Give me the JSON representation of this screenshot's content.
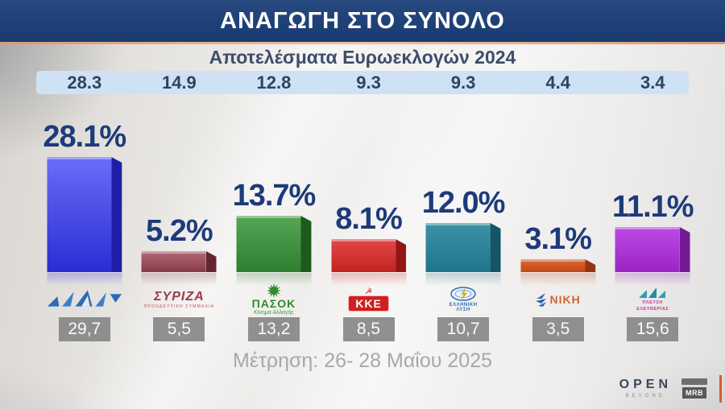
{
  "header": {
    "title": "ΑΝΑΓΩΓΗ ΣΤΟ ΣΥΝΟΛΟ"
  },
  "subtitle": "Αποτελέσματα Ευρωεκλογών 2024",
  "survey_note": "Μέτρηση: 26- 28 Μαΐου 2025",
  "branding": {
    "channel": "OPEN",
    "channel_tagline": "BEYOND",
    "pollster": "MRB"
  },
  "colors": {
    "header_bg": "#1d3d75",
    "accent_rule": "#e29c76",
    "strip_bg": "#cfe2f4",
    "pct_text": "#1d3a7a",
    "value_box_bg": "#828282",
    "note_text": "#a8a8a8"
  },
  "parties": [
    {
      "name": "ΝΕΑ ΔΗΜΟΚΡΑΤΙΑ",
      "logo": "nd",
      "logo_text": "",
      "logo_sub": "",
      "euro_2024": "28.3",
      "projection_label": "28.1%",
      "projection_value": 28.1,
      "survey_value": "29,7",
      "bar": {
        "top": "#6a6cf8",
        "bottom": "#2a2dd2",
        "side": "#1d20a6"
      }
    },
    {
      "name": "ΣΥΡΙΖΑ",
      "logo": "syriza",
      "logo_text": "ΣΥΡΙΖΑ",
      "logo_sub": "ΠΡΟΟΔΕΥΤΙΚΗ ΣΥΜΜΑΧΙΑ",
      "euro_2024": "14.9",
      "projection_label": "5.2%",
      "projection_value": 5.2,
      "survey_value": "5,5",
      "bar": {
        "top": "#b06a75",
        "bottom": "#8a3a48",
        "side": "#642432"
      }
    },
    {
      "name": "ΠΑΣΟΚ",
      "logo": "pasok",
      "logo_text": "ΠΑΣΟΚ",
      "logo_sub": "Κίνημα Αλλαγής",
      "euro_2024": "12.8",
      "projection_label": "13.7%",
      "projection_value": 13.7,
      "survey_value": "13,2",
      "bar": {
        "top": "#57a657",
        "bottom": "#2f7d2f",
        "side": "#1d5a1d"
      }
    },
    {
      "name": "ΚΚΕ",
      "logo": "kke",
      "logo_text": "ΚΚΕ",
      "logo_sub": "",
      "euro_2024": "9.3",
      "projection_label": "8.1%",
      "projection_value": 8.1,
      "survey_value": "8,5",
      "bar": {
        "top": "#e04848",
        "bottom": "#c42222",
        "side": "#931616"
      }
    },
    {
      "name": "ΕΛΛΗΝΙΚΗ ΛΥΣΗ",
      "logo": "elliniki-lysi",
      "logo_text": "ΕΛΛΗΝΙΚΗ ΛΥΣΗ",
      "logo_sub": "",
      "euro_2024": "9.3",
      "projection_label": "12.0%",
      "projection_value": 12.0,
      "survey_value": "10,7",
      "bar": {
        "top": "#3b93a8",
        "bottom": "#20758c",
        "side": "#145566"
      }
    },
    {
      "name": "ΝΙΚΗ",
      "logo": "niki",
      "logo_text": "ΝΙΚΗ",
      "logo_sub": "",
      "euro_2024": "4.4",
      "projection_label": "3.1%",
      "projection_value": 3.1,
      "survey_value": "3,5",
      "bar": {
        "top": "#dd6a32",
        "bottom": "#c2491a",
        "side": "#93350f"
      }
    },
    {
      "name": "ΠΛΕΥΣΗ ΕΛΕΥΘΕΡΙΑΣ",
      "logo": "plefsi",
      "logo_text": "ΠΛΕΥΣΗ",
      "logo_sub": "ΕΛΕΥΘΕΡΙΑΣ",
      "euro_2024": "3.4",
      "projection_label": "11.1%",
      "projection_value": 11.1,
      "survey_value": "15,6",
      "bar": {
        "top": "#bb4ae4",
        "bottom": "#9b24c4",
        "side": "#731a94"
      }
    }
  ],
  "chart_data": {
    "type": "bar",
    "title": "ΑΝΑΓΩΓΗ ΣΤΟ ΣΥΝΟΛΟ",
    "subtitle": "Αποτελέσματα Ευρωεκλογών 2024",
    "categories": [
      "ΝΕΑ ΔΗΜΟΚΡΑΤΙΑ",
      "ΣΥΡΙΖΑ",
      "ΠΑΣΟΚ",
      "ΚΚΕ",
      "ΕΛΛΗΝΙΚΗ ΛΥΣΗ",
      "ΝΙΚΗ",
      "ΠΛΕΥΣΗ ΕΛΕΥΘΕΡΙΑΣ"
    ],
    "series": [
      {
        "name": "Ευρωεκλογές 2024",
        "values": [
          28.3,
          14.9,
          12.8,
          9.3,
          9.3,
          4.4,
          3.4
        ]
      },
      {
        "name": "Αναγωγή στο σύνολο (%)",
        "values": [
          28.1,
          5.2,
          13.7,
          8.1,
          12.0,
          3.1,
          11.1
        ]
      },
      {
        "name": "Μέτρηση 26-28 Μαΐου 2025",
        "values": [
          29.7,
          5.5,
          13.2,
          8.5,
          10.7,
          3.5,
          15.6
        ]
      }
    ],
    "annotation": "Μέτρηση: 26- 28 Μαΐου 2025",
    "ylim": [
      0,
      30
    ],
    "grid": false,
    "legend_position": "none"
  }
}
